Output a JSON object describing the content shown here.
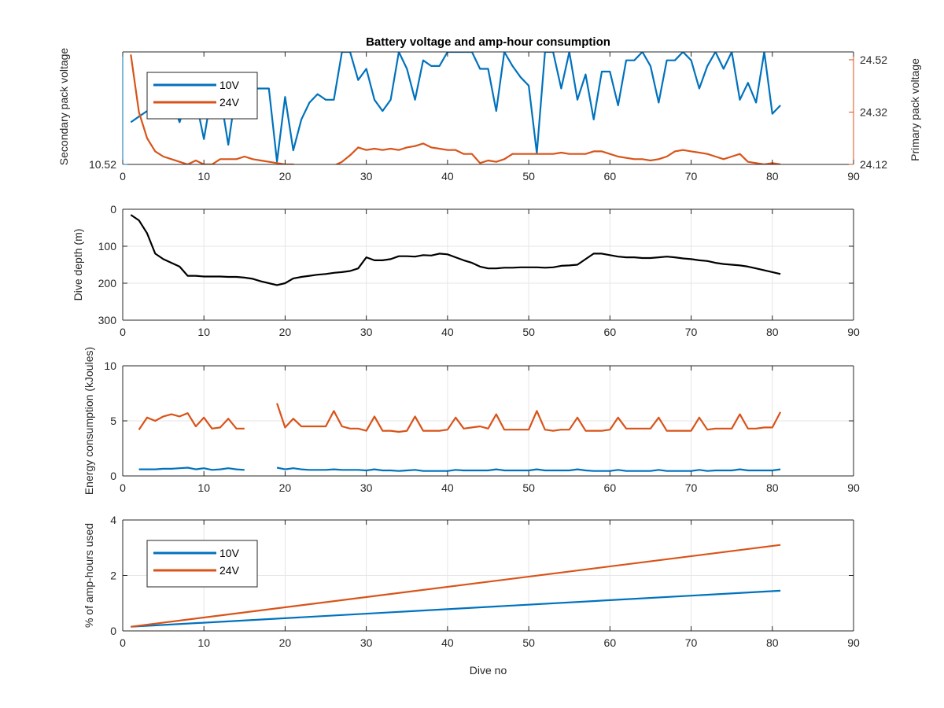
{
  "chart_data": [
    {
      "type": "line",
      "title": "Battery voltage and amp-hour consumption",
      "ylabel_left": "Secondary pack voltage",
      "ylabel_right": "Primary pack voltage",
      "xlim": [
        0,
        90
      ],
      "xticks": [
        0,
        10,
        20,
        30,
        40,
        50,
        60,
        70,
        80,
        90
      ],
      "ylim_left": [
        10.52,
        10.56
      ],
      "yticks_left": [
        10.52
      ],
      "ylim_right": [
        24.12,
        24.55
      ],
      "yticks_right": [
        24.12,
        24.32,
        24.52
      ],
      "grid": false,
      "legend_position": "top-left",
      "legend": [
        "10V",
        "24V"
      ],
      "series": [
        {
          "name": "10V",
          "axis": "left",
          "color": "#0072BD",
          "x": [
            1,
            2,
            3,
            4,
            5,
            6,
            7,
            8,
            9,
            10,
            11,
            12,
            13,
            14,
            15,
            16,
            17,
            18,
            19,
            20,
            21,
            22,
            23,
            24,
            25,
            26,
            27,
            28,
            29,
            30,
            31,
            32,
            33,
            34,
            35,
            36,
            37,
            38,
            39,
            40,
            41,
            42,
            43,
            44,
            45,
            46,
            47,
            48,
            49,
            50,
            51,
            52,
            53,
            54,
            55,
            56,
            57,
            58,
            59,
            60,
            61,
            62,
            63,
            64,
            65,
            66,
            67,
            68,
            69,
            70,
            71,
            72,
            73,
            74,
            75,
            76,
            77,
            78,
            79,
            80,
            81
          ],
          "y": [
            10.535,
            10.537,
            10.539,
            10.541,
            10.542,
            10.543,
            10.535,
            10.544,
            10.543,
            10.529,
            10.546,
            10.545,
            10.527,
            10.547,
            10.546,
            10.547,
            10.547,
            10.547,
            10.521,
            10.544,
            10.525,
            10.536,
            10.542,
            10.545,
            10.543,
            10.543,
            10.56,
            10.56,
            10.55,
            10.554,
            10.543,
            10.539,
            10.543,
            10.56,
            10.554,
            10.543,
            10.557,
            10.555,
            10.555,
            10.56,
            10.56,
            10.56,
            10.56,
            10.554,
            10.554,
            10.539,
            10.56,
            10.555,
            10.551,
            10.548,
            10.524,
            10.56,
            10.56,
            10.547,
            10.56,
            10.543,
            10.552,
            10.536,
            10.553,
            10.553,
            10.541,
            10.557,
            10.557,
            10.56,
            10.555,
            10.542,
            10.557,
            10.557,
            10.56,
            10.557,
            10.547,
            10.555,
            10.56,
            10.554,
            10.56,
            10.543,
            10.549,
            10.542,
            10.56,
            10.538,
            10.541
          ]
        },
        {
          "name": "24V",
          "axis": "right",
          "color": "#D95319",
          "x": [
            1,
            2,
            3,
            4,
            5,
            6,
            7,
            8,
            9,
            10,
            11,
            12,
            13,
            14,
            15,
            16,
            17,
            18,
            19,
            20,
            21,
            22,
            23,
            24,
            25,
            26,
            27,
            28,
            29,
            30,
            31,
            32,
            33,
            34,
            35,
            36,
            37,
            38,
            39,
            40,
            41,
            42,
            43,
            44,
            45,
            46,
            47,
            48,
            49,
            50,
            51,
            52,
            53,
            54,
            55,
            56,
            57,
            58,
            59,
            60,
            61,
            62,
            63,
            64,
            65,
            66,
            67,
            68,
            69,
            70,
            71,
            72,
            73,
            74,
            75,
            76,
            77,
            78,
            79,
            80,
            81
          ],
          "y": [
            24.54,
            24.32,
            24.22,
            24.17,
            24.15,
            24.14,
            24.13,
            24.12,
            24.135,
            24.12,
            24.12,
            24.14,
            24.14,
            24.14,
            24.15,
            24.14,
            24.135,
            24.13,
            24.125,
            24.12,
            24.12,
            24.105,
            24.11,
            24.11,
            24.11,
            24.115,
            24.13,
            24.155,
            24.185,
            24.175,
            24.18,
            24.175,
            24.18,
            24.175,
            24.185,
            24.19,
            24.2,
            24.185,
            24.18,
            24.175,
            24.175,
            24.16,
            24.16,
            24.125,
            24.135,
            24.13,
            24.14,
            24.16,
            24.16,
            24.16,
            24.16,
            24.16,
            24.16,
            24.165,
            24.16,
            24.16,
            24.16,
            24.17,
            24.17,
            24.16,
            24.15,
            24.145,
            24.14,
            24.14,
            24.135,
            24.14,
            24.15,
            24.17,
            24.175,
            24.17,
            24.165,
            24.16,
            24.15,
            24.14,
            24.15,
            24.16,
            24.13,
            24.125,
            24.12,
            24.125,
            24.12
          ]
        }
      ]
    },
    {
      "type": "line",
      "title": "",
      "ylabel": "Dive depth (m)",
      "xlim": [
        0,
        90
      ],
      "xticks": [
        0,
        10,
        20,
        30,
        40,
        50,
        60,
        70,
        80,
        90
      ],
      "ylim": [
        0,
        300
      ],
      "yticks": [
        0,
        100,
        200,
        300
      ],
      "y_reversed": true,
      "grid": true,
      "series": [
        {
          "color": "#000000",
          "x": [
            1,
            2,
            3,
            4,
            5,
            6,
            7,
            8,
            9,
            10,
            11,
            12,
            13,
            14,
            15,
            16,
            17,
            18,
            19,
            20,
            21,
            22,
            23,
            24,
            25,
            26,
            27,
            28,
            29,
            30,
            31,
            32,
            33,
            34,
            35,
            36,
            37,
            38,
            39,
            40,
            41,
            42,
            43,
            44,
            45,
            46,
            47,
            48,
            49,
            50,
            51,
            52,
            53,
            54,
            55,
            56,
            57,
            58,
            59,
            60,
            61,
            62,
            63,
            64,
            65,
            66,
            67,
            68,
            69,
            70,
            71,
            72,
            73,
            74,
            75,
            76,
            77,
            78,
            79,
            80,
            81
          ],
          "y": [
            15,
            30,
            65,
            120,
            135,
            145,
            155,
            180,
            180,
            182,
            182,
            182,
            183,
            183,
            185,
            188,
            195,
            200,
            205,
            200,
            187,
            183,
            180,
            177,
            175,
            172,
            170,
            167,
            160,
            130,
            138,
            138,
            135,
            127,
            127,
            128,
            124,
            125,
            120,
            122,
            130,
            138,
            145,
            155,
            160,
            160,
            158,
            158,
            157,
            157,
            157,
            158,
            157,
            153,
            152,
            150,
            135,
            120,
            120,
            124,
            128,
            130,
            130,
            132,
            132,
            130,
            128,
            130,
            133,
            135,
            138,
            140,
            145,
            148,
            150,
            152,
            155,
            160,
            165,
            170,
            175
          ]
        }
      ]
    },
    {
      "type": "line",
      "title": "",
      "ylabel": "Energy consumption (kJoules)",
      "xlim": [
        0,
        90
      ],
      "xticks": [
        0,
        10,
        20,
        30,
        40,
        50,
        60,
        70,
        80,
        90
      ],
      "ylim": [
        0,
        10
      ],
      "yticks": [
        0,
        5,
        10
      ],
      "grid": true,
      "series": [
        {
          "color": "#D95319",
          "x": [
            2,
            3,
            4,
            5,
            6,
            7,
            8,
            9,
            10,
            11,
            12,
            13,
            14,
            15,
            null,
            19,
            20,
            21,
            22,
            23,
            24,
            25,
            26,
            27,
            28,
            29,
            30,
            31,
            32,
            33,
            34,
            35,
            36,
            37,
            38,
            39,
            40,
            41,
            42,
            43,
            44,
            45,
            46,
            47,
            48,
            49,
            50,
            51,
            52,
            53,
            54,
            55,
            56,
            57,
            58,
            59,
            60,
            61,
            62,
            63,
            64,
            65,
            66,
            67,
            68,
            69,
            70,
            71,
            72,
            73,
            74,
            75,
            76,
            77,
            78,
            79,
            80,
            81
          ],
          "y": [
            4.2,
            5.3,
            5.0,
            5.4,
            5.6,
            5.4,
            5.7,
            4.5,
            5.3,
            4.3,
            4.4,
            5.2,
            4.3,
            4.3,
            null,
            6.6,
            4.4,
            5.2,
            4.5,
            4.5,
            4.5,
            4.5,
            5.9,
            4.5,
            4.3,
            4.3,
            4.1,
            5.4,
            4.1,
            4.1,
            4.0,
            4.1,
            5.4,
            4.1,
            4.1,
            4.1,
            4.2,
            5.3,
            4.3,
            4.4,
            4.5,
            4.3,
            5.6,
            4.2,
            4.2,
            4.2,
            4.2,
            5.9,
            4.2,
            4.1,
            4.2,
            4.2,
            5.3,
            4.1,
            4.1,
            4.1,
            4.2,
            5.3,
            4.3,
            4.3,
            4.3,
            4.3,
            5.3,
            4.1,
            4.1,
            4.1,
            4.1,
            5.3,
            4.2,
            4.3,
            4.3,
            4.3,
            5.6,
            4.3,
            4.3,
            4.4,
            4.4,
            5.8
          ]
        },
        {
          "color": "#0072BD",
          "x": [
            2,
            3,
            4,
            5,
            6,
            7,
            8,
            9,
            10,
            11,
            12,
            13,
            14,
            15,
            null,
            19,
            20,
            21,
            22,
            23,
            24,
            25,
            26,
            27,
            28,
            29,
            30,
            31,
            32,
            33,
            34,
            35,
            36,
            37,
            38,
            39,
            40,
            41,
            42,
            43,
            44,
            45,
            46,
            47,
            48,
            49,
            50,
            51,
            52,
            53,
            54,
            55,
            56,
            57,
            58,
            59,
            60,
            61,
            62,
            63,
            64,
            65,
            66,
            67,
            68,
            69,
            70,
            71,
            72,
            73,
            74,
            75,
            76,
            77,
            78,
            79,
            80,
            81
          ],
          "y": [
            0.6,
            0.6,
            0.6,
            0.65,
            0.65,
            0.7,
            0.75,
            0.6,
            0.7,
            0.55,
            0.6,
            0.7,
            0.6,
            0.55,
            null,
            0.75,
            0.6,
            0.7,
            0.6,
            0.55,
            0.55,
            0.55,
            0.6,
            0.55,
            0.55,
            0.55,
            0.5,
            0.6,
            0.5,
            0.5,
            0.45,
            0.5,
            0.55,
            0.45,
            0.45,
            0.45,
            0.45,
            0.55,
            0.5,
            0.5,
            0.5,
            0.5,
            0.6,
            0.5,
            0.5,
            0.5,
            0.5,
            0.6,
            0.5,
            0.5,
            0.5,
            0.5,
            0.6,
            0.5,
            0.45,
            0.45,
            0.45,
            0.55,
            0.45,
            0.45,
            0.45,
            0.45,
            0.55,
            0.45,
            0.45,
            0.45,
            0.45,
            0.55,
            0.45,
            0.5,
            0.5,
            0.5,
            0.6,
            0.5,
            0.5,
            0.5,
            0.5,
            0.6
          ]
        }
      ]
    },
    {
      "type": "line",
      "title": "",
      "xlabel": "Dive no",
      "ylabel": "% of amp-hours used",
      "xlim": [
        0,
        90
      ],
      "xticks": [
        0,
        10,
        20,
        30,
        40,
        50,
        60,
        70,
        80,
        90
      ],
      "ylim": [
        0,
        4
      ],
      "yticks": [
        0,
        2,
        4
      ],
      "grid": true,
      "legend_position": "top-left",
      "legend": [
        "10V",
        "24V"
      ],
      "series": [
        {
          "name": "10V",
          "color": "#0072BD",
          "x": [
            1,
            81
          ],
          "y": [
            0.15,
            1.45
          ]
        },
        {
          "name": "24V",
          "color": "#D95319",
          "x": [
            1,
            81
          ],
          "y": [
            0.15,
            3.1
          ]
        }
      ]
    }
  ]
}
